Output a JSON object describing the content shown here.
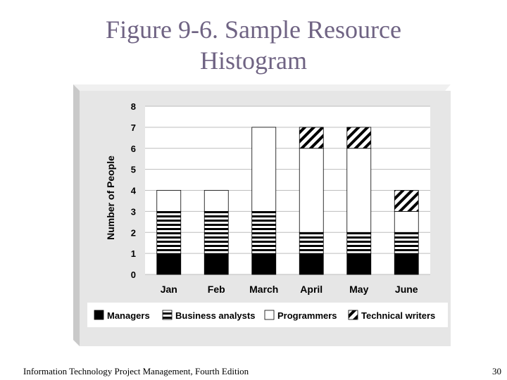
{
  "slide": {
    "title_line1": "Figure 9-6. Sample Resource",
    "title_line2": "Histogram",
    "footer": "Information Technology Project Management, Fourth Edition",
    "page_number": "30"
  },
  "colors": {
    "title": "#6f6383",
    "panel": "#e6e6e6",
    "panel_shadow": "#c9c9c9",
    "plot_bg": "#ffffff",
    "grid": "#bdbdbd",
    "managers": "#000000",
    "programmers": "#ffffff",
    "outline": "#000000"
  },
  "chart_data": {
    "type": "bar",
    "stacked": true,
    "title": "",
    "xlabel": "",
    "ylabel": "Number of People",
    "ylim": [
      0,
      8
    ],
    "yticks": [
      0,
      1,
      2,
      3,
      4,
      5,
      6,
      7,
      8
    ],
    "grid": true,
    "legend_position": "bottom",
    "categories": [
      "Jan",
      "Feb",
      "March",
      "April",
      "May",
      "June"
    ],
    "series": [
      {
        "name": "Managers",
        "pattern": "solid-black",
        "values": [
          1,
          1,
          1,
          1,
          1,
          1
        ]
      },
      {
        "name": "Business analysts",
        "pattern": "horizontal-stripes",
        "values": [
          2,
          2,
          2,
          1,
          1,
          1
        ]
      },
      {
        "name": "Programmers",
        "pattern": "white",
        "values": [
          1,
          1,
          4,
          4,
          4,
          1
        ]
      },
      {
        "name": "Technical writers",
        "pattern": "diagonal-stripes",
        "values": [
          0,
          0,
          0,
          1,
          1,
          1
        ]
      }
    ]
  }
}
